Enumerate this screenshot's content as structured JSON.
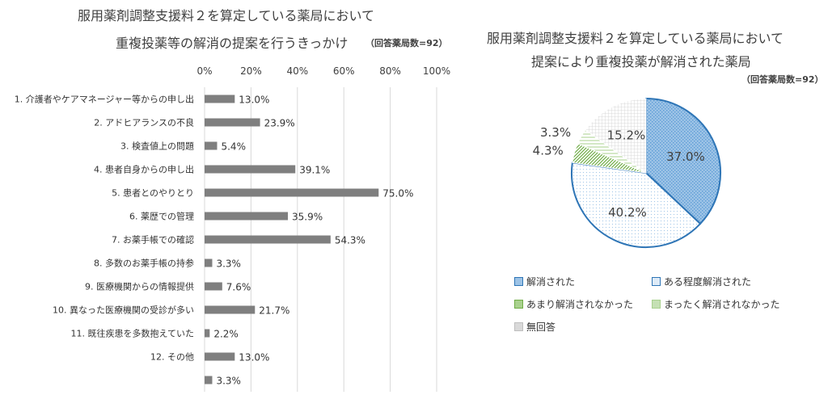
{
  "chart_data": [
    {
      "type": "bar",
      "orientation": "horizontal",
      "title_line1": "服用薬剤調整支援料２を算定している薬局において",
      "title_line2": "重複投薬等の解消の提案を行うきっかけ",
      "respondents_note": "（回答薬局数=92）",
      "x_ticks": [
        "0%",
        "20%",
        "40%",
        "60%",
        "80%",
        "100%"
      ],
      "xlim": [
        0,
        100
      ],
      "grid": true,
      "bar_color": "#7f7f7f",
      "categories": [
        "1.  介護者やケアマネージャー等からの申し出",
        "2.  アドヒアランスの不良",
        "3.  検査値上の問題",
        "4.  患者自身からの申し出",
        "5.  患者とのやりとり",
        "6.  薬歴での管理",
        "7.  お薬手帳での確認",
        "8.  多数のお薬手帳の持参",
        "9.  医療機関からの情報提供",
        "10.  異なった医療機関の受診が多い",
        "11.  既往疾患を多数抱えていた",
        "12. その他",
        ""
      ],
      "values": [
        13.0,
        23.9,
        5.4,
        39.1,
        75.0,
        35.9,
        54.3,
        3.3,
        7.6,
        21.7,
        2.2,
        13.0,
        3.3
      ],
      "value_labels": [
        "13.0%",
        "23.9%",
        "5.4%",
        "39.1%",
        "75.0%",
        "35.9%",
        "54.3%",
        "3.3%",
        "7.6%",
        "21.7%",
        "2.2%",
        "13.0%",
        "3.3%"
      ]
    },
    {
      "type": "pie",
      "title_line1": "服用薬剤調整支援料２を算定している薬局において",
      "title_line2": "提案により重複投薬が解消された薬局",
      "respondents_note": "（回答薬局数=92）",
      "slices": [
        {
          "name": "解消された",
          "value": 37.0,
          "label": "37.0%",
          "color": "#9dc3e6",
          "pattern": "dots-dense"
        },
        {
          "name": "ある程度解消された",
          "value": 40.2,
          "label": "40.2%",
          "color": "#deebf7",
          "pattern": "dots-sparse"
        },
        {
          "name": "あまり解消されなかった",
          "value": 4.3,
          "label": "4.3%",
          "color": "#a9d18e",
          "pattern": "diagonal"
        },
        {
          "name": "まったく解消されなかった",
          "value": 3.3,
          "label": "3.3%",
          "color": "#c5e0b4",
          "pattern": "horizontal"
        },
        {
          "name": "無回答",
          "value": 15.2,
          "label": "15.2%",
          "color": "#d9d9d9",
          "pattern": "grid"
        }
      ],
      "legend_position": "bottom",
      "outline_color": "#2e75b6"
    }
  ]
}
